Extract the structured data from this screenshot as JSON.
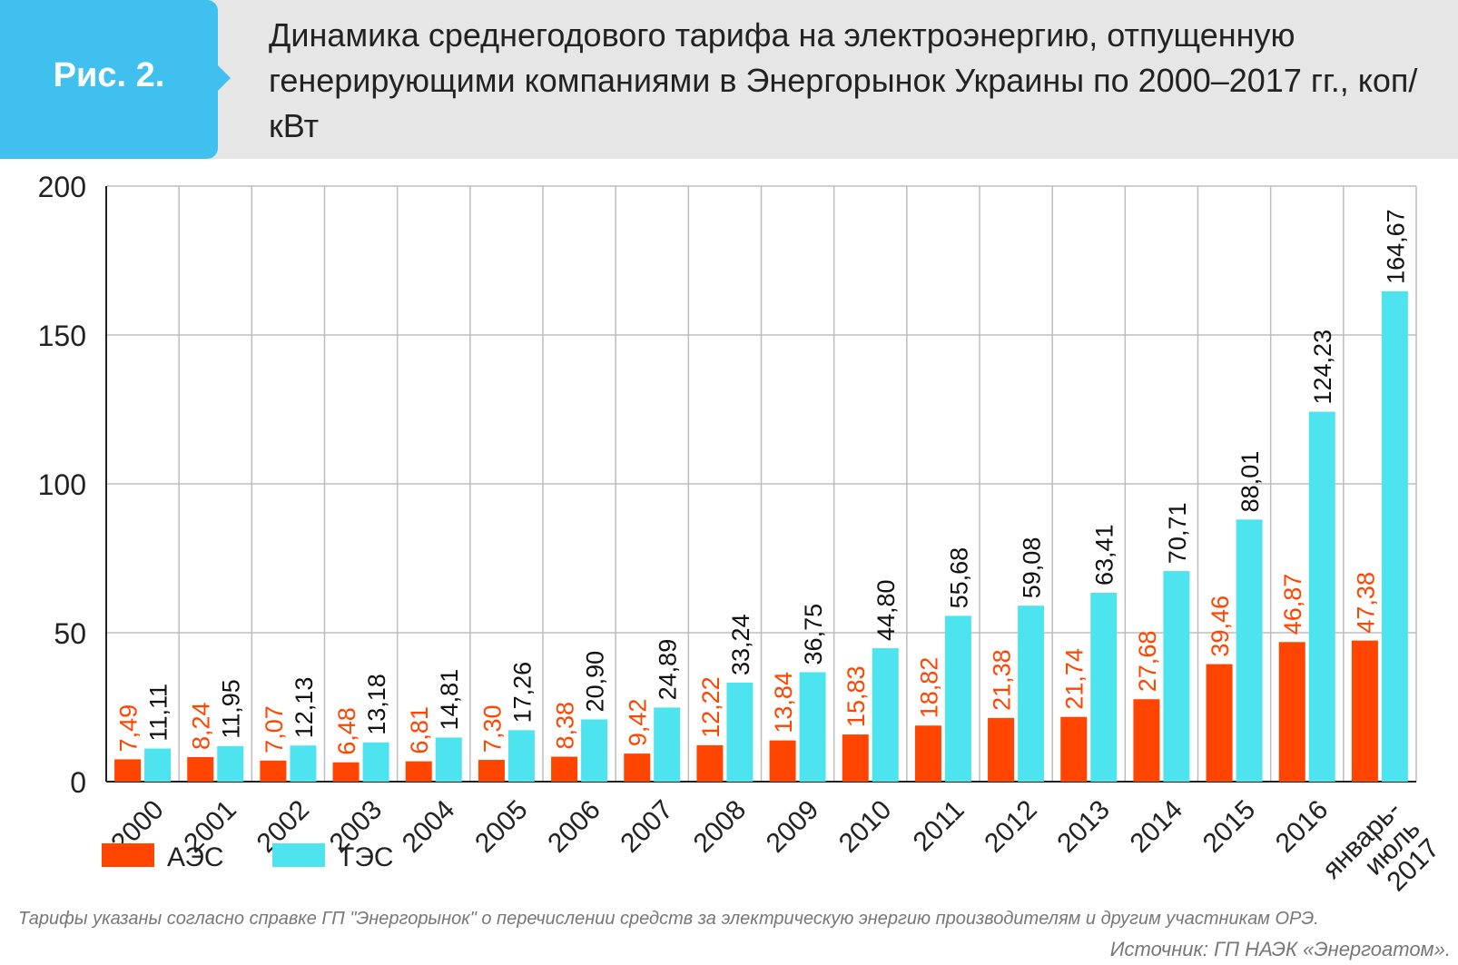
{
  "header": {
    "figure_label": "Рис. 2.",
    "title": "Динамика среднегодового тарифа на электроэнергию, отпущенную генерирующими компаниями в Энергорынок Украины по 2000–2017 гг., коп/кВт"
  },
  "colors": {
    "badge": "#3fc0ee",
    "header_bg": "#e6e6e6",
    "aes": "#ff4500",
    "tes": "#4de4f0",
    "aes_label": "#ff4500",
    "tes_label": "#111111"
  },
  "chart_data": {
    "type": "bar",
    "title": "",
    "xlabel": "",
    "ylabel": "",
    "ylim": [
      0,
      200
    ],
    "yticks": [
      0,
      50,
      100,
      150,
      200
    ],
    "grid": true,
    "legend_position": "bottom-left",
    "categories": [
      "2000",
      "2001",
      "2002",
      "2003",
      "2004",
      "2005",
      "2006",
      "2007",
      "2008",
      "2009",
      "2010",
      "2011",
      "2012",
      "2013",
      "2014",
      "2015",
      "2016",
      "январь-\nиюль\n2017"
    ],
    "series": [
      {
        "name": "АЭС",
        "values": [
          7.49,
          8.24,
          7.07,
          6.48,
          6.81,
          7.3,
          8.38,
          9.42,
          12.22,
          13.84,
          15.83,
          18.82,
          21.38,
          21.74,
          27.68,
          39.46,
          46.87,
          47.38
        ],
        "labels": [
          "7,49",
          "8,24",
          "7,07",
          "6,48",
          "6,81",
          "7,30",
          "8,38",
          "9,42",
          "12,22",
          "13,84",
          "15,83",
          "18,82",
          "21,38",
          "21,74",
          "27,68",
          "39,46",
          "46,87",
          "47,38"
        ]
      },
      {
        "name": "ТЭС",
        "values": [
          11.11,
          11.95,
          12.13,
          13.18,
          14.81,
          17.26,
          20.9,
          24.89,
          33.24,
          36.75,
          44.8,
          55.68,
          59.08,
          63.41,
          70.71,
          88.01,
          124.23,
          164.67
        ],
        "labels": [
          "11,11",
          "11,95",
          "12,13",
          "13,18",
          "14,81",
          "17,26",
          "20,90",
          "24,89",
          "33,24",
          "36,75",
          "44,80",
          "55,68",
          "59,08",
          "63,41",
          "70,71",
          "88,01",
          "124,23",
          "164,67"
        ]
      }
    ]
  },
  "footnote": "Тарифы указаны согласно справке ГП \"Энергорынок\" о перечислении средств за электрическую энергию производителям и другим участникам ОРЭ.",
  "source": "Источник:  ГП НАЭК «Энергоатом»."
}
